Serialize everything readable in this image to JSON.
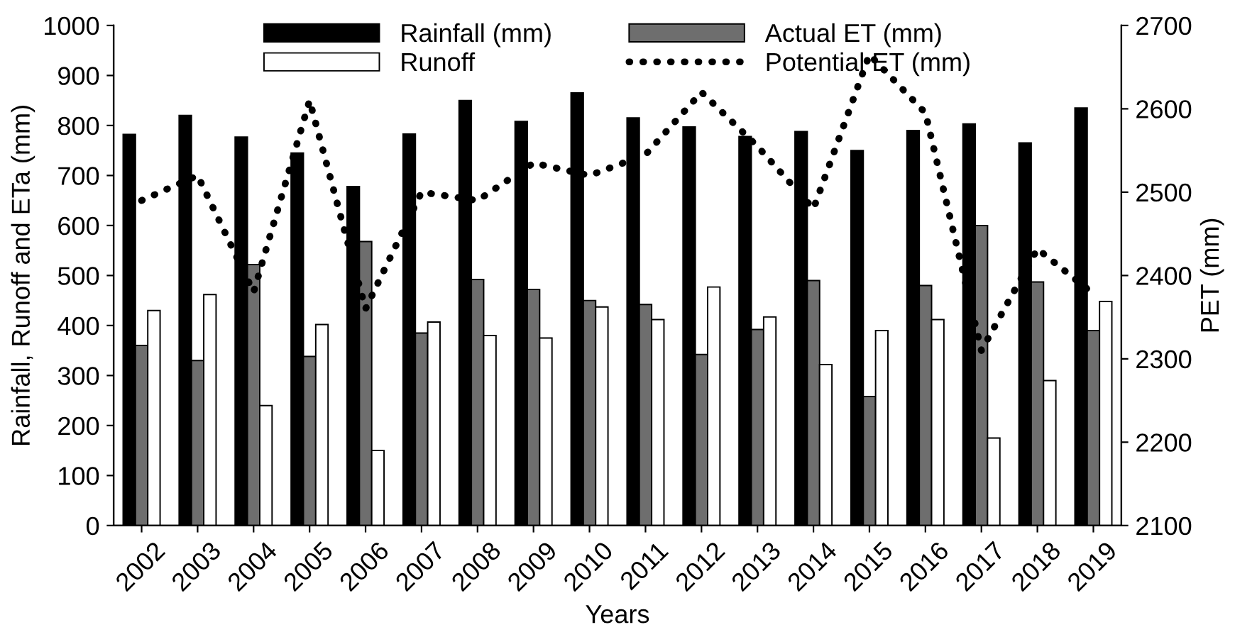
{
  "chart_data": {
    "type": "bar",
    "xlabel": "Years",
    "ylabel": "Rainfall, Runoff and ETa (mm)",
    "y2label": "PET (mm)",
    "categories": [
      "2002",
      "2003",
      "2004",
      "2005",
      "2006",
      "2007",
      "2008",
      "2009",
      "2010",
      "2011",
      "2012",
      "2013",
      "2014",
      "2015",
      "2016",
      "2017",
      "2018",
      "2019"
    ],
    "series": [
      {
        "name": "Rainfall (mm)",
        "color": "#000000",
        "values": [
          782,
          820,
          777,
          745,
          678,
          783,
          850,
          808,
          865,
          815,
          797,
          778,
          788,
          750,
          790,
          803,
          765,
          835
        ]
      },
      {
        "name": "Actual ET (mm)",
        "color": "#6e6e6e",
        "values": [
          360,
          330,
          522,
          338,
          568,
          385,
          492,
          472,
          450,
          442,
          342,
          392,
          490,
          258,
          480,
          600,
          487,
          390
        ]
      },
      {
        "name": "Runoff",
        "color": "#ffffff",
        "values": [
          430,
          462,
          240,
          402,
          150,
          407,
          380,
          375,
          437,
          412,
          477,
          417,
          322,
          390,
          412,
          175,
          290,
          448
        ]
      },
      {
        "name": "Potential ET (mm)",
        "type": "line",
        "axis": "y2",
        "color": "#000000",
        "line_style": "dotted",
        "values": [
          2490,
          2520,
          2380,
          2610,
          2360,
          2500,
          2490,
          2535,
          2520,
          2545,
          2620,
          2555,
          2480,
          2665,
          2595,
          2310,
          2432,
          2378
        ]
      }
    ],
    "ylim": [
      0,
      1000
    ],
    "yticks": [
      0,
      100,
      200,
      300,
      400,
      500,
      600,
      700,
      800,
      900,
      1000
    ],
    "y2lim": [
      2100,
      2700
    ],
    "y2ticks": [
      2100,
      2200,
      2300,
      2400,
      2500,
      2600,
      2700
    ],
    "legend": "top",
    "grid": false
  }
}
